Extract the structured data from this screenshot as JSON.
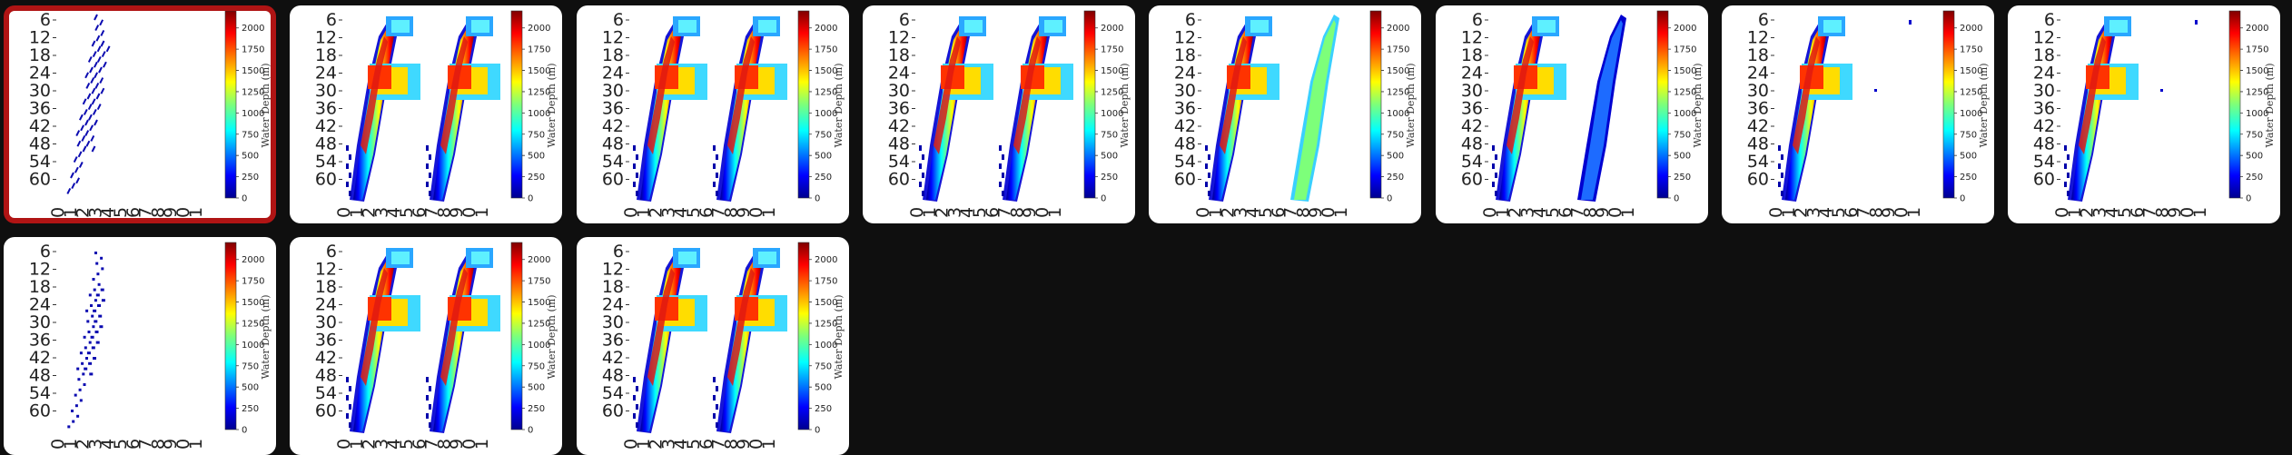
{
  "selected_index": 0,
  "colors": {
    "background": "#0f0f0f",
    "card": "#ffffff",
    "selection_border": "#b01414"
  },
  "colorbar": {
    "label": "Water Depth (m)",
    "ticks": [
      "0",
      "250",
      "500",
      "750",
      "1000",
      "1250",
      "1500",
      "1750",
      "2000"
    ],
    "colormap": "jet",
    "range": [
      0,
      2200
    ]
  },
  "axes": {
    "y_ticks": [
      "6",
      "12",
      "18",
      "24",
      "30",
      "36",
      "42",
      "48",
      "54",
      "60"
    ],
    "x_ticks": [
      "0",
      "1",
      "2",
      "3",
      "4",
      "5",
      "6",
      "7",
      "8",
      "9",
      "0",
      "1"
    ]
  },
  "thumbnails": [
    {
      "name": "thumb-1",
      "left": "sparse-lines",
      "right": "none"
    },
    {
      "name": "thumb-2",
      "left": "full",
      "right": "full"
    },
    {
      "name": "thumb-3",
      "left": "full",
      "right": "full"
    },
    {
      "name": "thumb-4",
      "left": "full",
      "right": "full"
    },
    {
      "name": "thumb-5",
      "left": "full",
      "right": "green-band"
    },
    {
      "name": "thumb-6",
      "left": "full",
      "right": "blue-band"
    },
    {
      "name": "thumb-7",
      "left": "full",
      "right": "dots"
    },
    {
      "name": "thumb-8",
      "left": "full",
      "right": "dots"
    },
    {
      "name": "thumb-9",
      "left": "sparse-dots",
      "right": "none"
    },
    {
      "name": "thumb-10",
      "left": "full",
      "right": "full"
    },
    {
      "name": "thumb-11",
      "left": "full",
      "right": "full"
    }
  ]
}
